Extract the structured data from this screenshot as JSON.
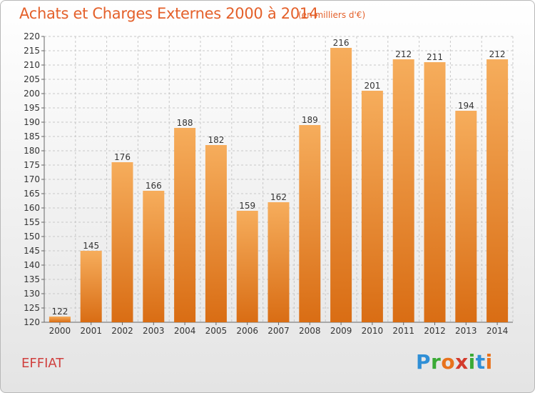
{
  "title": "Achats et Charges Externes 2000 à 2014",
  "subtitle": "(en milliers d'€)",
  "commune": "EFFIAT",
  "logo": {
    "text": "Proxiti",
    "letters": [
      "P",
      "r",
      "o",
      "x",
      "i",
      "t",
      "i"
    ],
    "colors": [
      "#2f8fd6",
      "#3aaa35",
      "#e8721c",
      "#d33a2c",
      "#3aaa35",
      "#2f8fd6",
      "#e8721c"
    ]
  },
  "colors": {
    "bar": "#f0882e",
    "bar_light": "#f6ad5c",
    "bar_dark": "#d96d14",
    "title": "#e4602a",
    "grid": "#c8c8c8",
    "axis": "#666666"
  },
  "chart_data": {
    "type": "bar",
    "title": "Achats et Charges Externes 2000 à 2014",
    "subtitle": "(en milliers d'€)",
    "categories": [
      "2000",
      "2001",
      "2002",
      "2003",
      "2004",
      "2005",
      "2006",
      "2007",
      "2008",
      "2009",
      "2010",
      "2011",
      "2012",
      "2013",
      "2014"
    ],
    "values": [
      122,
      145,
      176,
      166,
      188,
      182,
      159,
      162,
      189,
      216,
      201,
      212,
      211,
      194,
      212
    ],
    "ylim": [
      120,
      220
    ],
    "yticks": [
      120,
      125,
      130,
      135,
      140,
      145,
      150,
      155,
      160,
      165,
      170,
      175,
      180,
      185,
      190,
      195,
      200,
      205,
      210,
      215,
      220
    ],
    "grid": "horizontal dashed",
    "legend": "none"
  }
}
